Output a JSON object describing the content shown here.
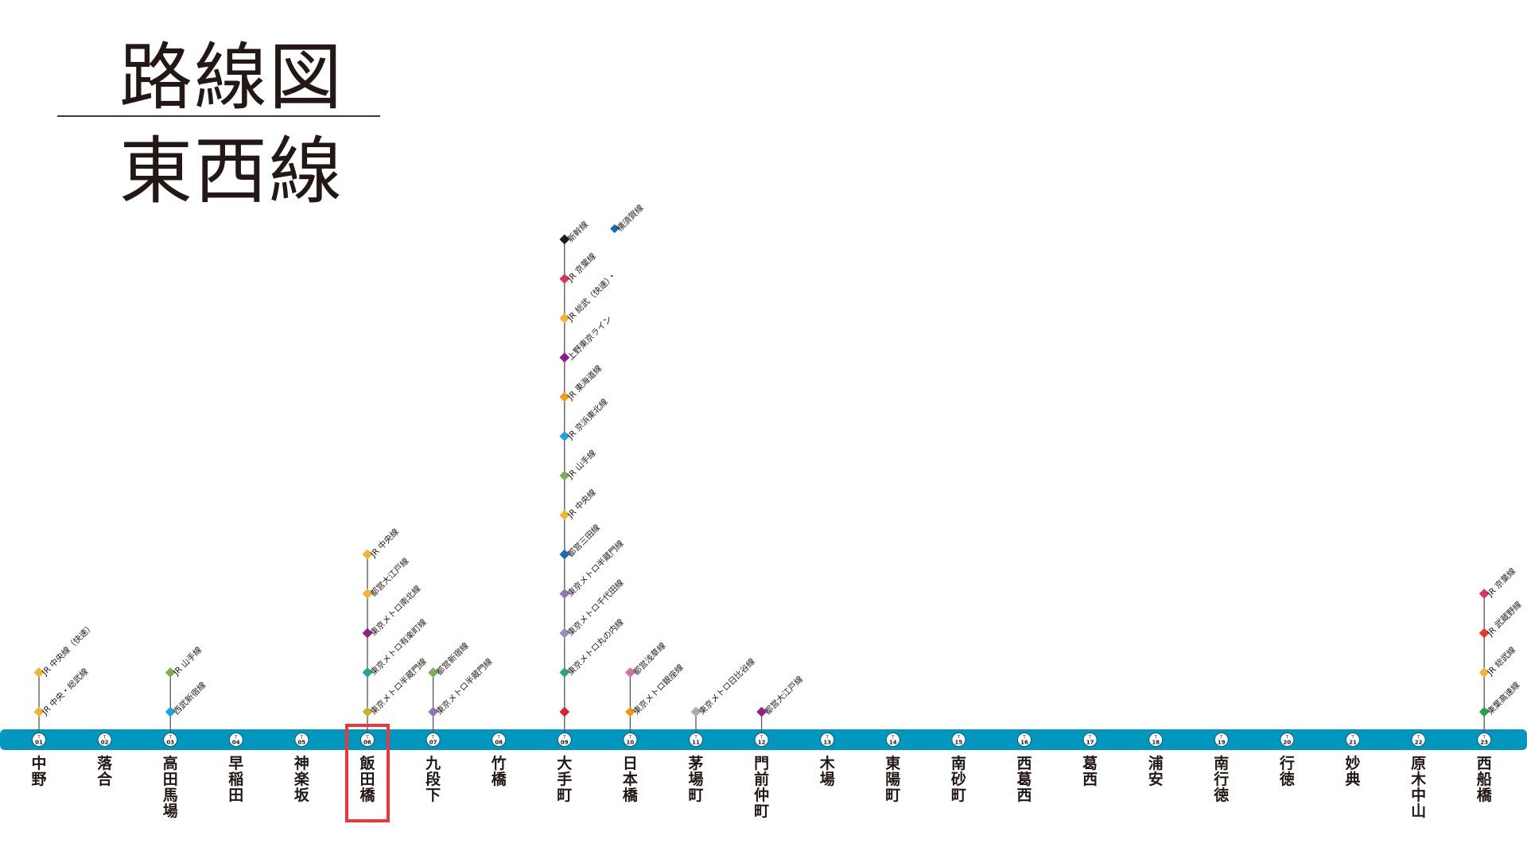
{
  "title": "路線図",
  "subtitle": "東西線",
  "line_color": "#0096be",
  "highlight_color": "#e8383d",
  "highlight_station": "T06",
  "line_prefix": "T",
  "stations": [
    {
      "code": "01",
      "name": "中野",
      "transfers": [
        {
          "label": "JR 中央線（快速）",
          "color": "#f2b431"
        },
        {
          "label": "JR 中央・総武線",
          "color": "#f2b431"
        }
      ]
    },
    {
      "code": "02",
      "name": "落合",
      "transfers": []
    },
    {
      "code": "03",
      "name": "高田馬場",
      "transfers": [
        {
          "label": "JR 山手線",
          "color": "#7ab055"
        },
        {
          "label": "西武新宿線",
          "color": "#1ba4e0"
        }
      ]
    },
    {
      "code": "04",
      "name": "早稲田",
      "transfers": []
    },
    {
      "code": "05",
      "name": "神楽坂",
      "transfers": []
    },
    {
      "code": "06",
      "name": "飯田橋",
      "transfers": [
        {
          "label": "JR 中央線",
          "color": "#f2b431"
        },
        {
          "label": "都営大江戸線",
          "color": "#f2b431"
        },
        {
          "label": "東京メトロ南北線",
          "color": "#9a1c84"
        },
        {
          "label": "東京メトロ有楽町線",
          "color": "#1fa39a"
        },
        {
          "label": "東京メトロ半蔵門線",
          "color": "#c5b232"
        }
      ]
    },
    {
      "code": "07",
      "name": "九段下",
      "transfers": [
        {
          "label": "都営新宿線",
          "color": "#7ab055"
        },
        {
          "label": "東京メトロ半蔵門線",
          "color": "#8f76b4"
        }
      ]
    },
    {
      "code": "08",
      "name": "竹橋",
      "transfers": []
    },
    {
      "code": "09",
      "name": "大手町",
      "transfers": [
        {
          "label": "新幹線",
          "color": "#231815"
        },
        {
          "label": "JR 京葉線",
          "color": "#d6375a",
          "extra": {
            "label": "横須賀線",
            "color": "#0b6dbb"
          }
        },
        {
          "label": "JR 総武（快速）・",
          "color": "#f2b431"
        },
        {
          "label": "上野東京ライン",
          "color": "#8b1d8c"
        },
        {
          "label": "JR 東海道線",
          "color": "#f29b1b"
        },
        {
          "label": "JR 京浜東北線",
          "color": "#1ba4e0"
        },
        {
          "label": "JR 山手線",
          "color": "#7ab055"
        },
        {
          "label": "JR 中央線",
          "color": "#f2b431"
        },
        {
          "label": "都営三田線",
          "color": "#1a6bb5"
        },
        {
          "label": "東京メトロ半蔵門線",
          "color": "#8f76b4"
        },
        {
          "label": "東京メトロ千代田線",
          "color": "#8f8fc2"
        },
        {
          "label": "東京メトロ丸の内線",
          "color": "#28a77a"
        },
        {
          "label": "",
          "color": "#e0202b"
        }
      ]
    },
    {
      "code": "10",
      "name": "日本橋",
      "transfers": [
        {
          "label": "都営浅草線",
          "color": "#e06aa5"
        },
        {
          "label": "東京メトロ銀座線",
          "color": "#f29b1b"
        }
      ]
    },
    {
      "code": "11",
      "name": "茅場町",
      "transfers": [
        {
          "label": "東京メトロ日比谷線",
          "color": "#a9acae"
        }
      ]
    },
    {
      "code": "12",
      "name": "門前仲町",
      "transfers": [
        {
          "label": "都営大江戸線",
          "color": "#9a1c84"
        }
      ]
    },
    {
      "code": "13",
      "name": "木場",
      "transfers": []
    },
    {
      "code": "14",
      "name": "東陽町",
      "transfers": []
    },
    {
      "code": "15",
      "name": "南砂町",
      "transfers": []
    },
    {
      "code": "16",
      "name": "西葛西",
      "transfers": []
    },
    {
      "code": "17",
      "name": "葛西",
      "transfers": []
    },
    {
      "code": "18",
      "name": "浦安",
      "transfers": []
    },
    {
      "code": "19",
      "name": "南行徳",
      "transfers": []
    },
    {
      "code": "20",
      "name": "行徳",
      "transfers": []
    },
    {
      "code": "21",
      "name": "妙典",
      "transfers": []
    },
    {
      "code": "22",
      "name": "原木中山",
      "transfers": []
    },
    {
      "code": "23",
      "name": "西船橋",
      "transfers": [
        {
          "label": "JR 京葉線",
          "color": "#d6375a"
        },
        {
          "label": "JR 武蔵野線",
          "color": "#e8382c"
        },
        {
          "label": "JR 総武線",
          "color": "#f2b431"
        },
        {
          "label": "東葉高速線",
          "color": "#2aa14a"
        }
      ]
    }
  ]
}
